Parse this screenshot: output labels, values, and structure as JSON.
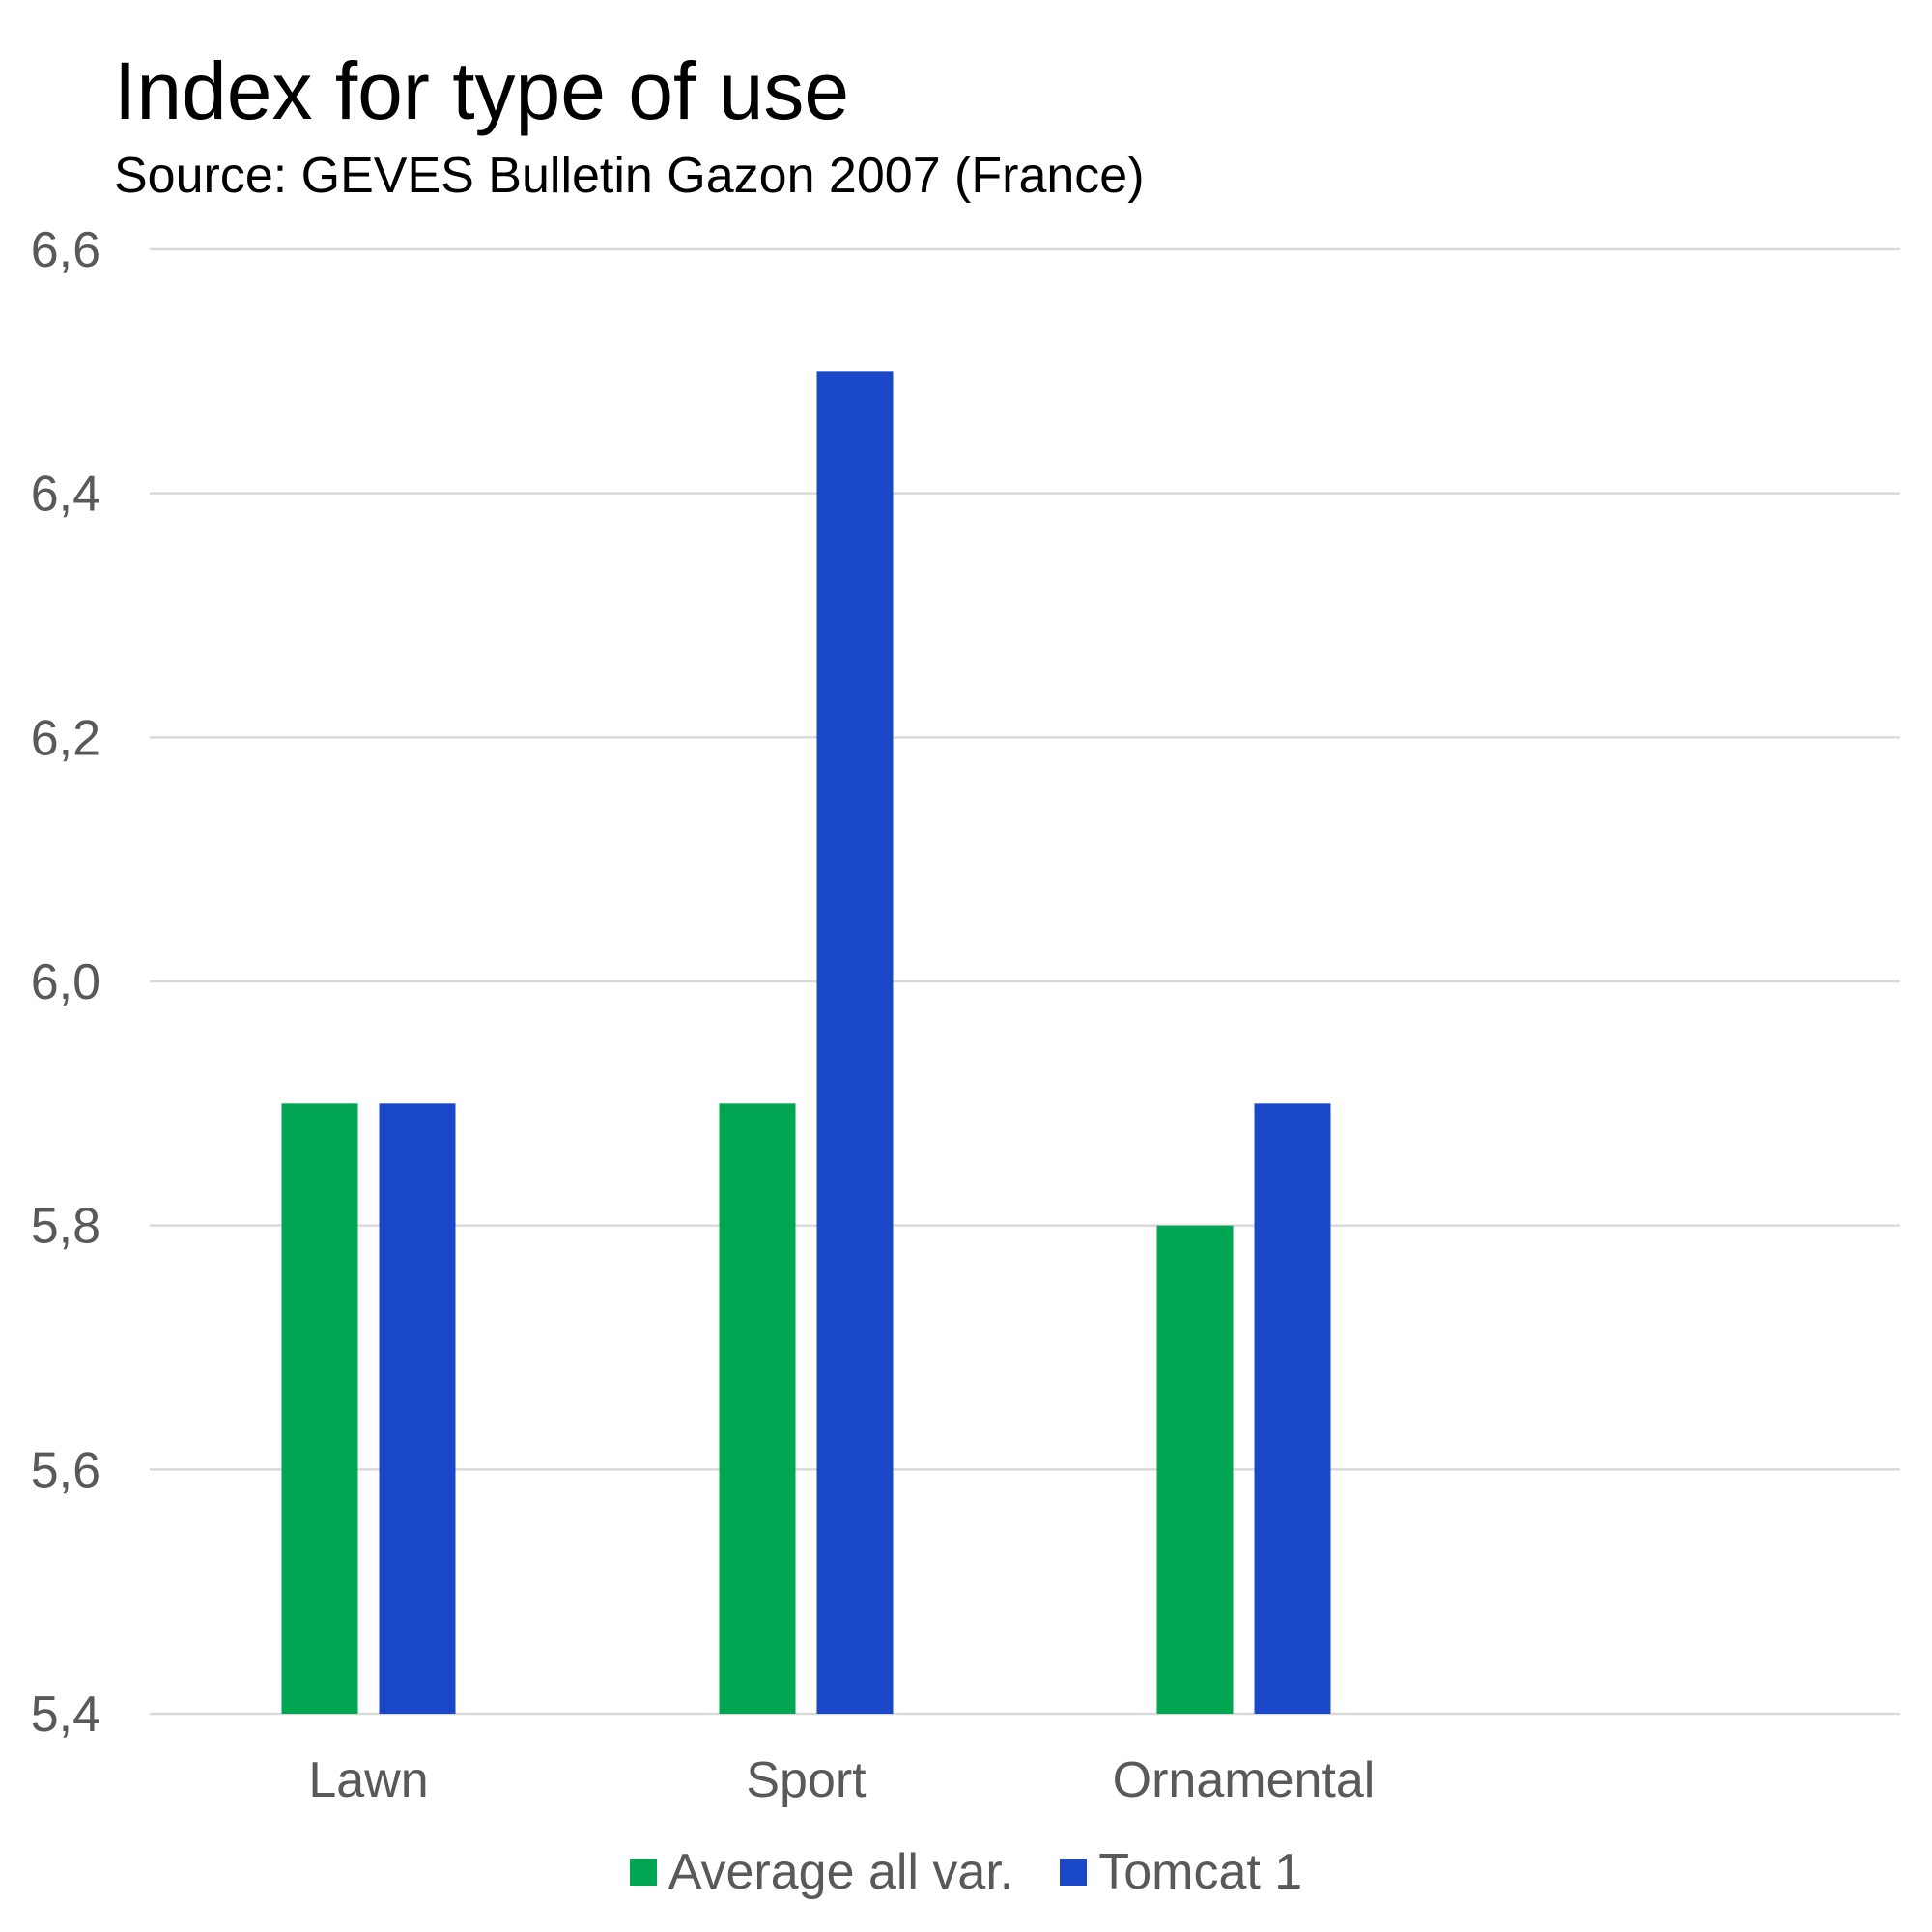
{
  "chart_data": {
    "type": "bar",
    "title": "Index for type of use",
    "subtitle": "Source: GEVES Bulletin Gazon 2007 (France)",
    "xlabel": "",
    "ylabel": "",
    "categories": [
      "Lawn",
      "Sport",
      "Ornamental",
      ""
    ],
    "series": [
      {
        "name": "Average all var.",
        "color": "#00A651",
        "values": [
          5.9,
          5.9,
          5.8,
          null
        ]
      },
      {
        "name": "Tomcat 1",
        "color": "#1A48C9",
        "values": [
          5.9,
          6.5,
          5.9,
          null
        ]
      }
    ],
    "ylim": [
      5.4,
      6.6
    ],
    "yticks": [
      5.4,
      5.6,
      5.8,
      6.0,
      6.2,
      6.4,
      6.6
    ],
    "ytick_labels": [
      "5,4",
      "5,6",
      "5,8",
      "6,0",
      "6,2",
      "6,4",
      "6,6"
    ],
    "grid": true,
    "gridline_color": "#D9D9D9",
    "legend_position": "bottom"
  }
}
